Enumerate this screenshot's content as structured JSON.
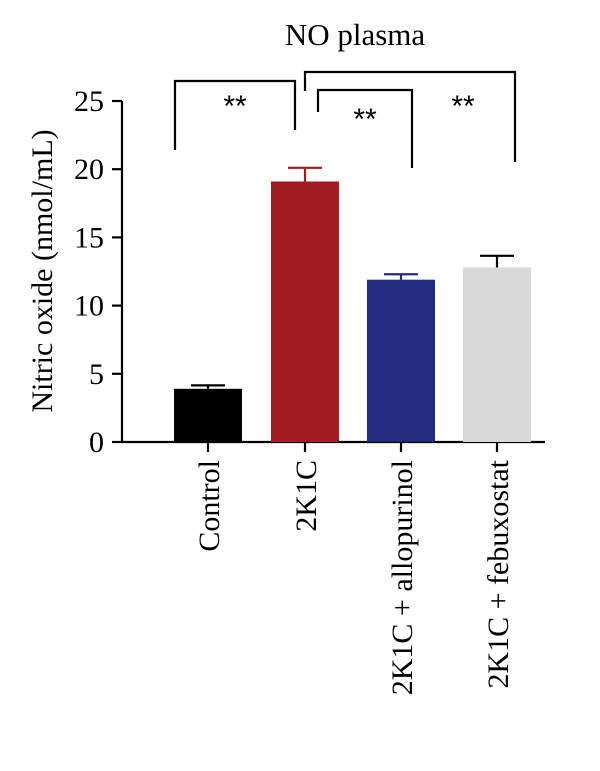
{
  "chart_data": {
    "type": "bar",
    "title": "NO plasma",
    "ylabel": "Nitric oxide (nmol/mL)",
    "xlabel": "",
    "ylim": [
      0,
      25
    ],
    "yticks": [
      "0",
      "5",
      "10",
      "15",
      "20",
      "25"
    ],
    "categories": [
      "Control",
      "2K1C",
      "2K1C + allopurinol",
      "2K1C + febuxostat"
    ],
    "values": [
      3.9,
      19.1,
      11.9,
      12.8
    ],
    "errors": [
      0.25,
      1.0,
      0.4,
      0.85
    ],
    "colors": [
      "#000000",
      "#a01c22",
      "#232b7d",
      "#d9d9d9"
    ],
    "errorbar_colors": [
      "#000000",
      "#a01c22",
      "#232b7d",
      "#000000"
    ],
    "significance": [
      {
        "from": "Control",
        "to": "2K1C",
        "label": "**"
      },
      {
        "from": "2K1C",
        "to": "2K1C + allopurinol",
        "label": "**"
      },
      {
        "from": "2K1C",
        "to": "2K1C + febuxostat",
        "label": "**"
      }
    ],
    "grid": false,
    "legend": "none"
  }
}
